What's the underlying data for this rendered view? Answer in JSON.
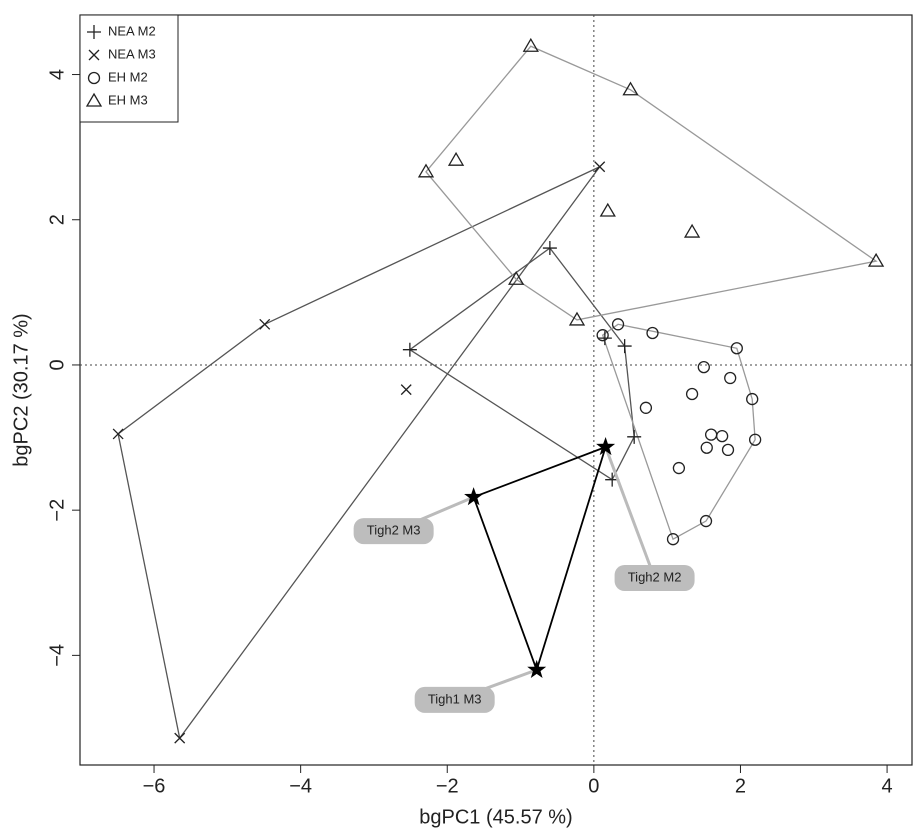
{
  "chart_data": {
    "type": "scatter",
    "x_label": "bgPC1 (45.57 %)",
    "y_label": "bgPC2 (30.17 %)",
    "xlim": [
      -7.01,
      4.34
    ],
    "ylim": [
      -5.51,
      4.82
    ],
    "xticks": [
      {
        "value": -6,
        "label": "−6"
      },
      {
        "value": -4,
        "label": "−4"
      },
      {
        "value": -2,
        "label": "−2"
      },
      0,
      2,
      4
    ],
    "yticks": [
      {
        "value": -4,
        "label": "−4"
      },
      {
        "value": -2,
        "label": "−2"
      },
      0,
      2,
      4
    ],
    "zero_lines": true,
    "legend": "top-left",
    "hull": true,
    "series": [
      {
        "name": "NEA M2",
        "marker": "plus",
        "color": "#555555",
        "x": [
          -2.51,
          -0.6,
          0.25,
          0.55,
          0.42,
          0.15
        ],
        "y": [
          0.21,
          1.61,
          -1.58,
          -0.99,
          0.26,
          0.37
        ]
      },
      {
        "name": "NEA M3",
        "marker": "cross",
        "color": "#555555",
        "x": [
          0.08,
          -4.49,
          -6.49,
          -5.65,
          -2.56
        ],
        "y": [
          2.73,
          0.56,
          -0.95,
          -5.14,
          -0.34
        ]
      },
      {
        "name": "EH M2",
        "marker": "circle",
        "color": "#999999",
        "x": [
          0.12,
          0.33,
          0.8,
          1.95,
          1.86,
          1.5,
          1.34,
          2.16,
          2.2,
          0.71,
          1.6,
          1.75,
          1.54,
          1.83,
          1.16,
          1.53,
          1.08
        ],
        "y": [
          0.41,
          0.56,
          0.44,
          0.23,
          -0.18,
          -0.03,
          -0.4,
          -0.47,
          -1.03,
          -0.59,
          -0.96,
          -0.98,
          -1.14,
          -1.17,
          -1.42,
          -2.15,
          -2.4
        ]
      },
      {
        "name": "EH M3",
        "marker": "triangle",
        "color": "#999999",
        "x": [
          -0.86,
          0.5,
          3.85,
          -2.29,
          -1.88,
          0.19,
          1.34,
          -1.06,
          -0.23
        ],
        "y": [
          4.39,
          3.79,
          1.43,
          2.66,
          2.82,
          2.12,
          1.83,
          1.18,
          0.62
        ]
      }
    ],
    "highlight": {
      "marker": "star",
      "color": "#000000",
      "labels": [
        "Tigh2 M3",
        "Tigh1 M3",
        "Tigh2 M2"
      ],
      "x": [
        -1.64,
        -0.78,
        0.16
      ],
      "y": [
        -1.82,
        -4.2,
        -1.13
      ]
    }
  }
}
